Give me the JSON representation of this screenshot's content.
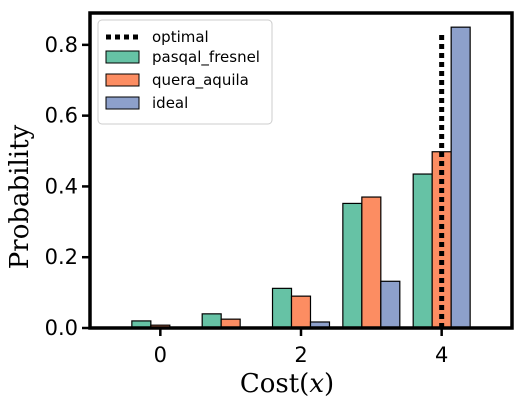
{
  "chart_data": {
    "type": "bar",
    "xlabel": "Cost(",
    "xlabel_var": "x",
    "xlabel_close": ")",
    "ylabel": "Probability",
    "x": [
      0,
      1,
      2,
      3,
      4
    ],
    "xticks": [
      0,
      2,
      4
    ],
    "xtick_labels": [
      "0",
      "2",
      "4"
    ],
    "yticks": [
      0.0,
      0.2,
      0.4,
      0.6,
      0.8
    ],
    "ytick_labels": [
      "0.0",
      "0.2",
      "0.4",
      "0.6",
      "0.8"
    ],
    "xlim": [
      -1,
      5
    ],
    "ylim": [
      0,
      0.89
    ],
    "series": [
      {
        "name": "pasqal_fresnel",
        "color": "#66c2a5",
        "values": [
          0.02,
          0.04,
          0.112,
          0.352,
          0.435
        ]
      },
      {
        "name": "quera_aquila",
        "color": "#fc8d62",
        "values": [
          0.008,
          0.025,
          0.09,
          0.37,
          0.498
        ]
      },
      {
        "name": "ideal",
        "color": "#8da0cb",
        "values": [
          0.0,
          0.0,
          0.017,
          0.132,
          0.85
        ]
      }
    ],
    "optimal": {
      "name": "optimal",
      "x": 4,
      "y": 0.83,
      "style": "dotted",
      "color": "#000000"
    },
    "grid": false,
    "legend": "top-left"
  }
}
